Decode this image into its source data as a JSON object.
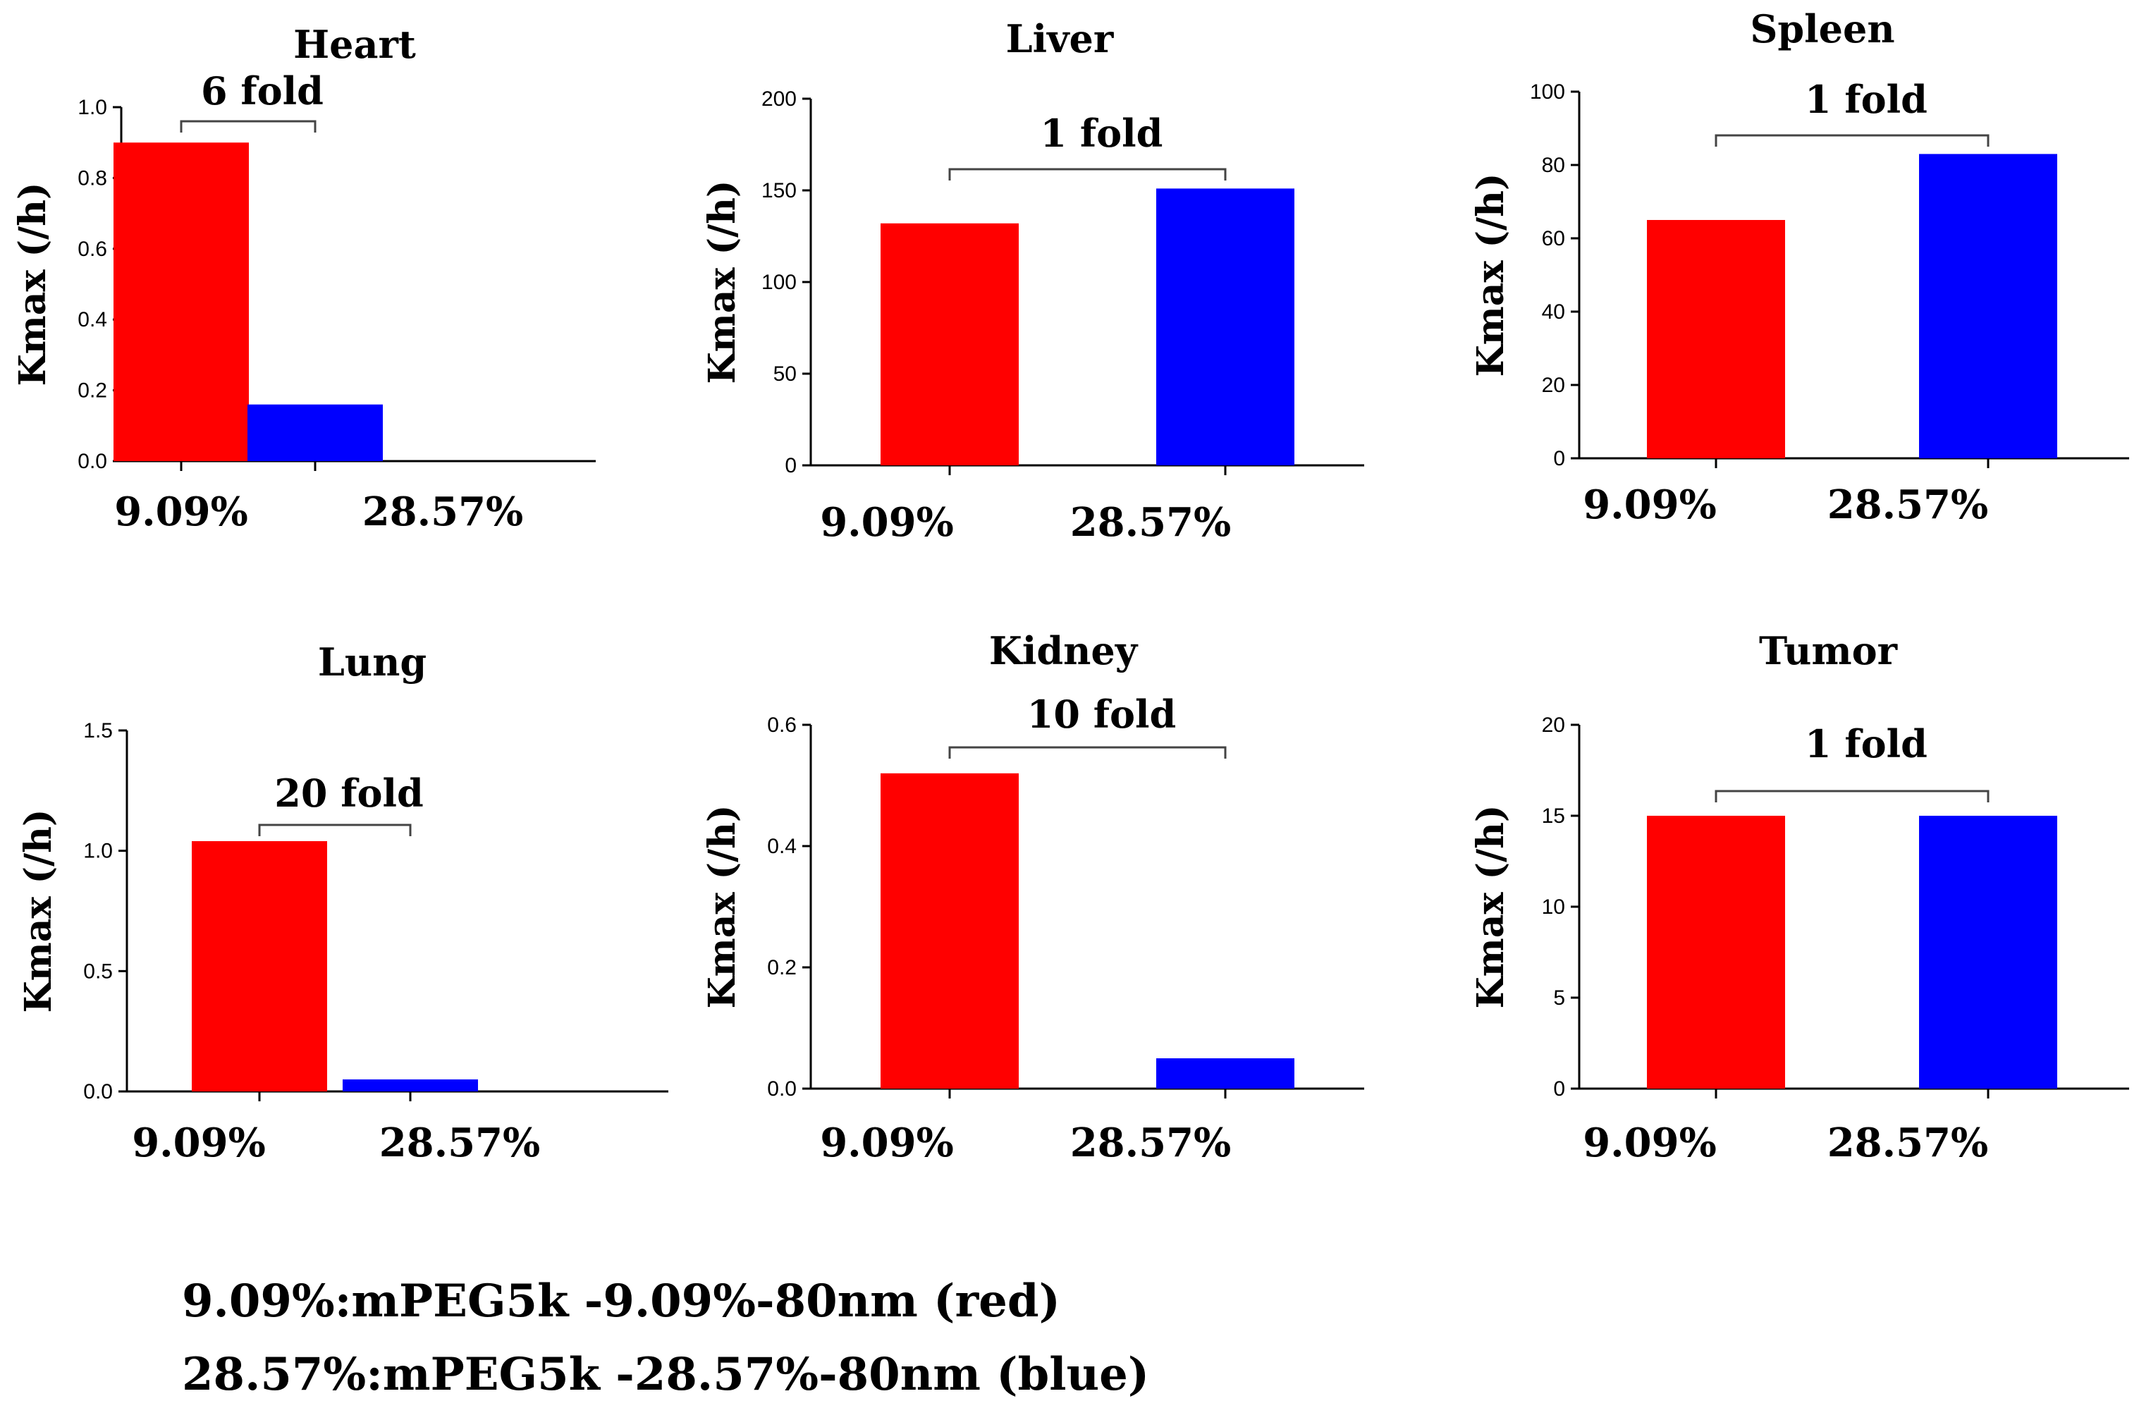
{
  "chart_data": [
    {
      "type": "bar",
      "title": "Heart",
      "ylabel": "Kmax (/h)",
      "categories": [
        "9.09%",
        "28.57%"
      ],
      "values": [
        0.9,
        0.16
      ],
      "colors": [
        "#ff0000",
        "#0000ff"
      ],
      "ylim": [
        0,
        1.0
      ],
      "yticks": [
        0,
        0.2,
        0.4,
        0.6,
        0.8,
        1.0
      ],
      "ytick_labels": [
        "0.0",
        "0.2",
        "0.4",
        "0.6",
        "0.8",
        "1.0"
      ],
      "annotation": "6 fold",
      "grid": false
    },
    {
      "type": "bar",
      "title": "Liver",
      "ylabel": "Kmax (/h)",
      "categories": [
        "9.09%",
        "28.57%"
      ],
      "values": [
        132,
        151
      ],
      "colors": [
        "#ff0000",
        "#0000ff"
      ],
      "ylim": [
        0,
        200
      ],
      "yticks": [
        0,
        50,
        100,
        150,
        200
      ],
      "ytick_labels": [
        "0",
        "50",
        "100",
        "150",
        "200"
      ],
      "annotation": "1 fold",
      "grid": false
    },
    {
      "type": "bar",
      "title": "Spleen",
      "ylabel": "Kmax (/h)",
      "categories": [
        "9.09%",
        "28.57%"
      ],
      "values": [
        65,
        83
      ],
      "colors": [
        "#ff0000",
        "#0000ff"
      ],
      "ylim": [
        0,
        100
      ],
      "yticks": [
        0,
        20,
        40,
        60,
        80,
        100
      ],
      "ytick_labels": [
        "0",
        "20",
        "40",
        "60",
        "80",
        "100"
      ],
      "annotation": "1 fold",
      "grid": false
    },
    {
      "type": "bar",
      "title": "Lung",
      "ylabel": "Kmax (/h)",
      "categories": [
        "9.09%",
        "28.57%"
      ],
      "values": [
        1.04,
        0.05
      ],
      "colors": [
        "#ff0000",
        "#0000ff"
      ],
      "ylim": [
        0,
        1.5
      ],
      "yticks": [
        0,
        0.5,
        1.0,
        1.5
      ],
      "ytick_labels": [
        "0.0",
        "0.5",
        "1.0",
        "1.5"
      ],
      "annotation": "20 fold",
      "grid": false
    },
    {
      "type": "bar",
      "title": "Kidney",
      "ylabel": "Kmax (/h)",
      "categories": [
        "9.09%",
        "28.57%"
      ],
      "values": [
        0.52,
        0.05
      ],
      "colors": [
        "#ff0000",
        "#0000ff"
      ],
      "ylim": [
        0,
        0.6
      ],
      "yticks": [
        0,
        0.2,
        0.4,
        0.6
      ],
      "ytick_labels": [
        "0.0",
        "0.2",
        "0.4",
        "0.6"
      ],
      "annotation": "10 fold",
      "grid": false
    },
    {
      "type": "bar",
      "title": "Tumor",
      "ylabel": "Kmax (/h)",
      "categories": [
        "9.09%",
        "28.57%"
      ],
      "values": [
        15,
        15
      ],
      "colors": [
        "#ff0000",
        "#0000ff"
      ],
      "ylim": [
        0,
        20
      ],
      "yticks": [
        0,
        5,
        10,
        15,
        20
      ],
      "ytick_labels": [
        "0",
        "5",
        "10",
        "15",
        "20"
      ],
      "annotation": "1 fold",
      "grid": false
    }
  ],
  "legend": {
    "line1": "9.09%:mPEG5k -9.09%-80nm (red)",
    "line2": "28.57%:mPEG5k -28.57%-80nm (blue)"
  }
}
